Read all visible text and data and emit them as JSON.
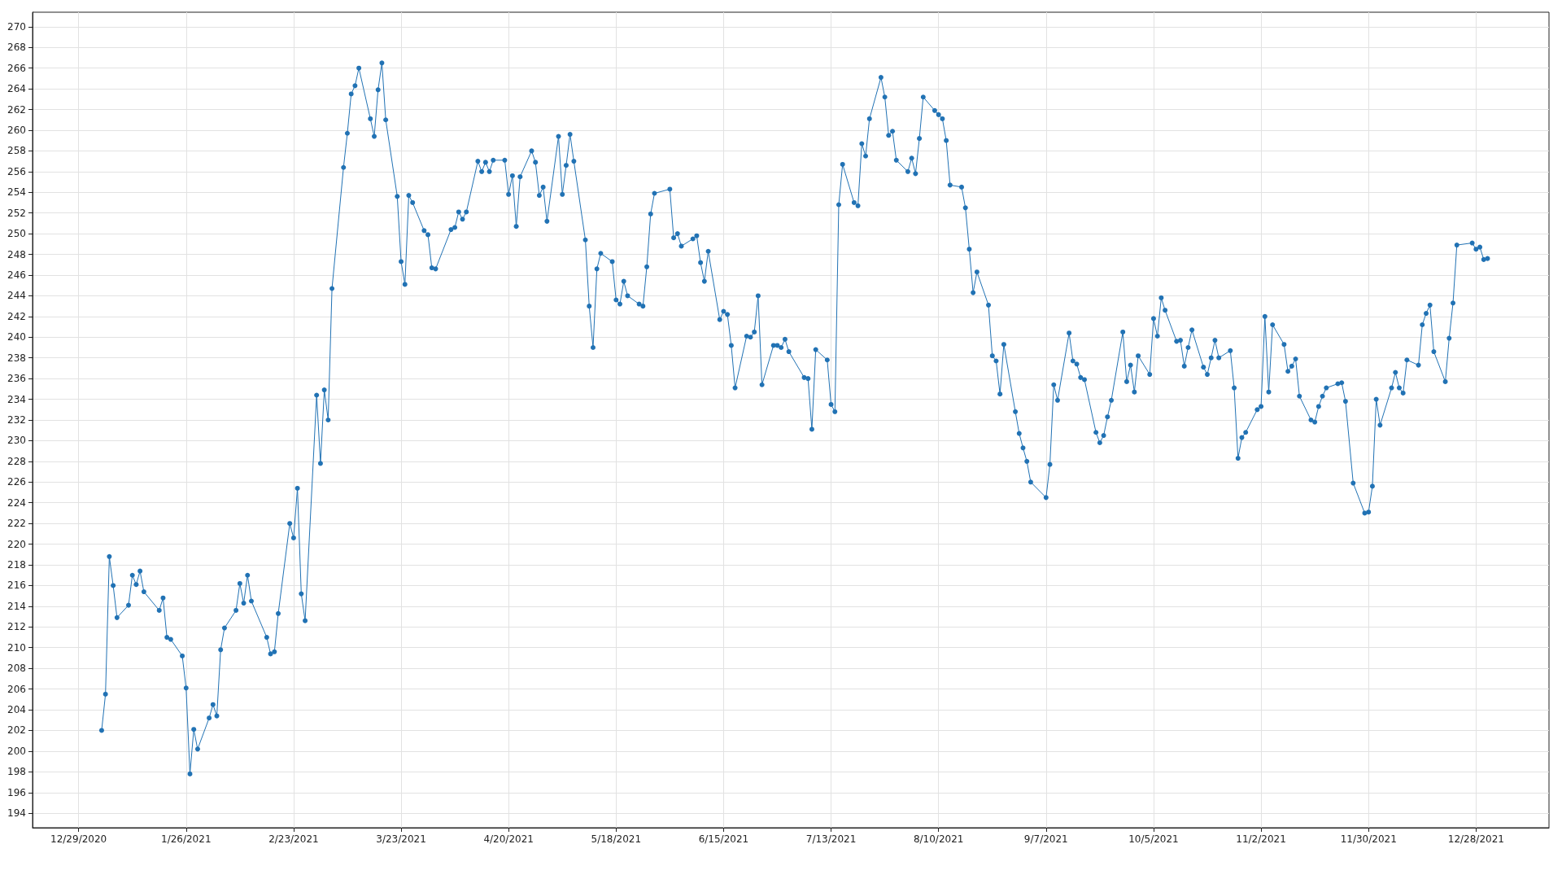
{
  "chart_data": {
    "type": "line",
    "x": [
      "2021-01-04",
      "2021-01-05",
      "2021-01-06",
      "2021-01-07",
      "2021-01-08",
      "2021-01-11",
      "2021-01-12",
      "2021-01-13",
      "2021-01-14",
      "2021-01-15",
      "2021-01-19",
      "2021-01-20",
      "2021-01-21",
      "2021-01-22",
      "2021-01-25",
      "2021-01-26",
      "2021-01-27",
      "2021-01-28",
      "2021-01-29",
      "2021-02-01",
      "2021-02-02",
      "2021-02-03",
      "2021-02-04",
      "2021-02-05",
      "2021-02-08",
      "2021-02-09",
      "2021-02-10",
      "2021-02-11",
      "2021-02-12",
      "2021-02-16",
      "2021-02-17",
      "2021-02-18",
      "2021-02-19",
      "2021-02-22",
      "2021-02-23",
      "2021-02-24",
      "2021-02-25",
      "2021-02-26",
      "2021-03-01",
      "2021-03-02",
      "2021-03-03",
      "2021-03-04",
      "2021-03-05",
      "2021-03-08",
      "2021-03-09",
      "2021-03-10",
      "2021-03-11",
      "2021-03-12",
      "2021-03-15",
      "2021-03-16",
      "2021-03-17",
      "2021-03-18",
      "2021-03-19",
      "2021-03-22",
      "2021-03-23",
      "2021-03-24",
      "2021-03-25",
      "2021-03-26",
      "2021-03-29",
      "2021-03-30",
      "2021-03-31",
      "2021-04-01",
      "2021-04-05",
      "2021-04-06",
      "2021-04-07",
      "2021-04-08",
      "2021-04-09",
      "2021-04-12",
      "2021-04-13",
      "2021-04-14",
      "2021-04-15",
      "2021-04-16",
      "2021-04-19",
      "2021-04-20",
      "2021-04-21",
      "2021-04-22",
      "2021-04-23",
      "2021-04-26",
      "2021-04-27",
      "2021-04-28",
      "2021-04-29",
      "2021-04-30",
      "2021-05-03",
      "2021-05-04",
      "2021-05-05",
      "2021-05-06",
      "2021-05-07",
      "2021-05-10",
      "2021-05-11",
      "2021-05-12",
      "2021-05-13",
      "2021-05-14",
      "2021-05-17",
      "2021-05-18",
      "2021-05-19",
      "2021-05-20",
      "2021-05-21",
      "2021-05-24",
      "2021-05-25",
      "2021-05-26",
      "2021-05-27",
      "2021-05-28",
      "2021-06-01",
      "2021-06-02",
      "2021-06-03",
      "2021-06-04",
      "2021-06-07",
      "2021-06-08",
      "2021-06-09",
      "2021-06-10",
      "2021-06-11",
      "2021-06-14",
      "2021-06-15",
      "2021-06-16",
      "2021-06-17",
      "2021-06-18",
      "2021-06-21",
      "2021-06-22",
      "2021-06-23",
      "2021-06-24",
      "2021-06-25",
      "2021-06-28",
      "2021-06-29",
      "2021-06-30",
      "2021-07-01",
      "2021-07-02",
      "2021-07-06",
      "2021-07-07",
      "2021-07-08",
      "2021-07-09",
      "2021-07-12",
      "2021-07-13",
      "2021-07-14",
      "2021-07-15",
      "2021-07-16",
      "2021-07-19",
      "2021-07-20",
      "2021-07-21",
      "2021-07-22",
      "2021-07-23",
      "2021-07-26",
      "2021-07-27",
      "2021-07-28",
      "2021-07-29",
      "2021-07-30",
      "2021-08-02",
      "2021-08-03",
      "2021-08-04",
      "2021-08-05",
      "2021-08-06",
      "2021-08-09",
      "2021-08-10",
      "2021-08-11",
      "2021-08-12",
      "2021-08-13",
      "2021-08-16",
      "2021-08-17",
      "2021-08-18",
      "2021-08-19",
      "2021-08-20",
      "2021-08-23",
      "2021-08-24",
      "2021-08-25",
      "2021-08-26",
      "2021-08-27",
      "2021-08-30",
      "2021-08-31",
      "2021-09-01",
      "2021-09-02",
      "2021-09-03",
      "2021-09-07",
      "2021-09-08",
      "2021-09-09",
      "2021-09-10",
      "2021-09-13",
      "2021-09-14",
      "2021-09-15",
      "2021-09-16",
      "2021-09-17",
      "2021-09-20",
      "2021-09-21",
      "2021-09-22",
      "2021-09-23",
      "2021-09-24",
      "2021-09-27",
      "2021-09-28",
      "2021-09-29",
      "2021-09-30",
      "2021-10-01",
      "2021-10-04",
      "2021-10-05",
      "2021-10-06",
      "2021-10-07",
      "2021-10-08",
      "2021-10-11",
      "2021-10-12",
      "2021-10-13",
      "2021-10-14",
      "2021-10-15",
      "2021-10-18",
      "2021-10-19",
      "2021-10-20",
      "2021-10-21",
      "2021-10-22",
      "2021-10-25",
      "2021-10-26",
      "2021-10-27",
      "2021-10-28",
      "2021-10-29",
      "2021-11-01",
      "2021-11-02",
      "2021-11-03",
      "2021-11-04",
      "2021-11-05",
      "2021-11-08",
      "2021-11-09",
      "2021-11-10",
      "2021-11-11",
      "2021-11-12",
      "2021-11-15",
      "2021-11-16",
      "2021-11-17",
      "2021-11-18",
      "2021-11-19",
      "2021-11-22",
      "2021-11-23",
      "2021-11-24",
      "2021-11-26",
      "2021-11-29",
      "2021-11-30",
      "2021-12-01",
      "2021-12-02",
      "2021-12-03",
      "2021-12-06",
      "2021-12-07",
      "2021-12-08",
      "2021-12-09",
      "2021-12-10",
      "2021-12-13",
      "2021-12-14",
      "2021-12-15",
      "2021-12-16",
      "2021-12-17",
      "2021-12-20",
      "2021-12-21",
      "2021-12-22",
      "2021-12-23",
      "2021-12-27",
      "2021-12-28",
      "2021-12-29",
      "2021-12-30",
      "2021-12-31"
    ],
    "series": [
      {
        "color": "#2172b4",
        "values": [
          202.0,
          205.5,
          218.8,
          216.0,
          212.9,
          214.1,
          217.0,
          216.1,
          217.4,
          215.4,
          213.6,
          214.8,
          211.0,
          210.8,
          209.2,
          206.1,
          197.8,
          202.1,
          200.2,
          203.2,
          204.5,
          203.4,
          209.8,
          211.9,
          213.6,
          216.2,
          214.3,
          217.0,
          214.5,
          211.0,
          209.4,
          209.6,
          213.3,
          222.0,
          220.6,
          225.4,
          215.2,
          212.6,
          234.4,
          227.8,
          234.9,
          232.0,
          244.7,
          256.4,
          259.7,
          263.5,
          264.3,
          266.0,
          261.1,
          259.4,
          263.9,
          266.5,
          261.0,
          253.6,
          247.3,
          245.1,
          253.7,
          253.0,
          250.3,
          249.9,
          246.7,
          246.6,
          250.4,
          250.6,
          252.1,
          251.4,
          252.1,
          257.0,
          256.0,
          256.9,
          256.0,
          257.1,
          257.1,
          253.8,
          255.6,
          250.7,
          255.5,
          258.0,
          256.9,
          253.7,
          254.5,
          251.2,
          259.4,
          253.8,
          256.6,
          259.6,
          257.0,
          249.4,
          243.0,
          239.0,
          246.6,
          248.1,
          247.3,
          243.6,
          243.2,
          245.4,
          244.0,
          243.2,
          243.0,
          246.8,
          251.9,
          253.9,
          254.3,
          249.6,
          250.0,
          248.8,
          249.5,
          249.8,
          247.2,
          245.4,
          248.3,
          241.7,
          242.5,
          242.2,
          239.2,
          235.1,
          240.1,
          240.0,
          240.5,
          244.0,
          235.4,
          239.2,
          239.2,
          239.0,
          239.8,
          238.6,
          236.1,
          236.0,
          231.1,
          238.8,
          237.8,
          233.5,
          232.8,
          252.8,
          256.7,
          253.0,
          252.7,
          258.7,
          257.5,
          261.1,
          265.1,
          263.2,
          259.5,
          259.9,
          257.1,
          256.0,
          257.3,
          255.8,
          259.2,
          263.2,
          261.9,
          261.5,
          261.1,
          259.0,
          254.7,
          254.5,
          252.5,
          248.5,
          244.3,
          246.3,
          243.1,
          238.2,
          237.7,
          234.5,
          239.3,
          232.8,
          230.7,
          229.3,
          228.0,
          226.0,
          224.5,
          227.7,
          235.4,
          233.9,
          240.4,
          237.7,
          237.4,
          236.1,
          235.9,
          230.8,
          229.8,
          230.5,
          232.3,
          233.9,
          240.5,
          235.7,
          237.3,
          234.7,
          238.2,
          236.4,
          241.8,
          240.1,
          243.8,
          242.6,
          239.6,
          239.7,
          237.2,
          239.0,
          240.7,
          237.1,
          236.4,
          238.0,
          239.7,
          238.0,
          238.7,
          235.1,
          228.3,
          230.3,
          230.8,
          233.0,
          233.3,
          242.0,
          234.7,
          241.2,
          239.3,
          236.7,
          237.2,
          237.9,
          234.3,
          232.0,
          231.8,
          233.3,
          234.3,
          235.1,
          235.5,
          235.6,
          233.8,
          225.9,
          223.0,
          223.1,
          225.6,
          234.0,
          231.5,
          235.1,
          236.6,
          235.1,
          234.6,
          237.8,
          237.3,
          241.2,
          242.3,
          243.1,
          238.6,
          235.7,
          239.9,
          243.3,
          248.9,
          249.1,
          248.5,
          248.7,
          247.5,
          247.6
        ]
      }
    ],
    "xlim": [
      "2020-12-17",
      "2022-01-16"
    ],
    "xticks": [
      {
        "value": "2020-12-29",
        "label": "12/29/2020"
      },
      {
        "value": "2021-01-26",
        "label": "1/26/2021"
      },
      {
        "value": "2021-02-23",
        "label": "2/23/2021"
      },
      {
        "value": "2021-03-23",
        "label": "3/23/2021"
      },
      {
        "value": "2021-04-20",
        "label": "4/20/2021"
      },
      {
        "value": "2021-05-18",
        "label": "5/18/2021"
      },
      {
        "value": "2021-06-15",
        "label": "6/15/2021"
      },
      {
        "value": "2021-07-13",
        "label": "7/13/2021"
      },
      {
        "value": "2021-08-10",
        "label": "8/10/2021"
      },
      {
        "value": "2021-09-07",
        "label": "9/7/2021"
      },
      {
        "value": "2021-10-05",
        "label": "10/5/2021"
      },
      {
        "value": "2021-11-02",
        "label": "11/2/2021"
      },
      {
        "value": "2021-11-30",
        "label": "11/30/2021"
      },
      {
        "value": "2021-12-28",
        "label": "12/28/2021"
      }
    ],
    "ylim": [
      192.6,
      271.4
    ],
    "yticks": [
      194,
      196,
      198,
      200,
      202,
      204,
      206,
      208,
      210,
      212,
      214,
      216,
      218,
      220,
      222,
      224,
      226,
      228,
      230,
      232,
      234,
      236,
      238,
      240,
      242,
      244,
      246,
      248,
      250,
      252,
      254,
      256,
      258,
      260,
      262,
      264,
      266,
      268,
      270
    ],
    "grid": true,
    "marker": "circle",
    "line_style": "solid"
  }
}
